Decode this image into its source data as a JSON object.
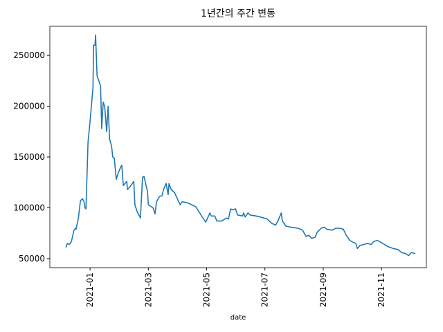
{
  "chart_data": {
    "type": "line",
    "title": "1년간의 주간 변동",
    "x_label": "date",
    "color": "#1f77b4",
    "x": [
      0.17,
      0.22,
      0.29,
      0.36,
      0.45,
      0.5,
      0.52,
      0.6,
      0.67,
      0.74,
      0.79,
      0.83,
      0.86,
      0.93,
      1.0,
      1.1,
      1.12,
      1.17,
      1.19,
      1.24,
      1.36,
      1.4,
      1.45,
      1.5,
      1.57,
      1.62,
      1.67,
      1.74,
      1.78,
      1.83,
      1.9,
      1.95,
      2.05,
      2.09,
      2.14,
      2.26,
      2.28,
      2.38,
      2.5,
      2.54,
      2.62,
      2.73,
      2.8,
      2.85,
      2.97,
      3.0,
      3.16,
      3.23,
      3.28,
      3.38,
      3.47,
      3.52,
      3.61,
      3.68,
      3.71,
      3.78,
      3.9,
      4.09,
      4.16,
      4.33,
      4.42,
      4.63,
      4.87,
      4.97,
      5.11,
      5.16,
      5.28,
      5.35,
      5.51,
      5.68,
      5.75,
      5.82,
      5.89,
      5.99,
      6.06,
      6.23,
      6.27,
      6.32,
      6.42,
      6.49,
      6.7,
      6.84,
      7.08,
      7.22,
      7.37,
      7.46,
      7.56,
      7.6,
      7.72,
      7.89,
      8.13,
      8.29,
      8.41,
      8.51,
      8.6,
      8.72,
      8.79,
      8.93,
      9.03,
      9.12,
      9.31,
      9.43,
      9.55,
      9.69,
      9.79,
      9.91,
      10.03,
      10.12,
      10.17,
      10.26,
      10.41,
      10.5,
      10.64,
      10.74,
      10.86,
      10.98,
      11.1,
      11.21,
      11.4,
      11.57,
      11.69,
      11.83,
      11.93,
      12.02,
      12.16
    ],
    "values": [
      61000,
      65000,
      64000,
      67000,
      78000,
      80000,
      79000,
      90000,
      107000,
      109000,
      106000,
      100000,
      99000,
      165000,
      185000,
      218000,
      260000,
      260000,
      270000,
      230000,
      220000,
      178000,
      204000,
      200000,
      175000,
      200000,
      168000,
      160000,
      150000,
      149000,
      128000,
      133000,
      140000,
      142000,
      122000,
      126000,
      118000,
      121000,
      126000,
      103000,
      96000,
      90000,
      130000,
      131000,
      116000,
      103000,
      100000,
      94000,
      106000,
      111000,
      112000,
      118000,
      124000,
      113000,
      124000,
      118000,
      115000,
      103000,
      106000,
      105000,
      104000,
      101000,
      90000,
      86000,
      95000,
      92000,
      92000,
      87000,
      87000,
      90000,
      89000,
      99000,
      98000,
      99000,
      93000,
      92000,
      95000,
      91000,
      95000,
      93000,
      92000,
      91000,
      89000,
      85000,
      83000,
      88000,
      95000,
      87000,
      82000,
      81000,
      80000,
      78000,
      72000,
      73000,
      70000,
      71000,
      76000,
      80000,
      81000,
      79000,
      78000,
      80000,
      80000,
      79000,
      73000,
      68000,
      66000,
      65000,
      60000,
      63000,
      64000,
      65000,
      64000,
      67000,
      68000,
      66000,
      64000,
      62000,
      60000,
      59000,
      56000,
      55000,
      53000,
      56000,
      55000
    ],
    "xlim": [
      -0.38,
      12.54
    ],
    "xticks": [
      {
        "value": 1,
        "label": "2021-01"
      },
      {
        "value": 3,
        "label": "2021-03"
      },
      {
        "value": 5,
        "label": "2021-05"
      },
      {
        "value": 7,
        "label": "2021-07"
      },
      {
        "value": 9,
        "label": "2021-09"
      },
      {
        "value": 11,
        "label": "2021-11"
      }
    ],
    "ylim": [
      41150,
      278600
    ],
    "yticks": [
      50000,
      100000,
      150000,
      200000,
      250000
    ]
  }
}
